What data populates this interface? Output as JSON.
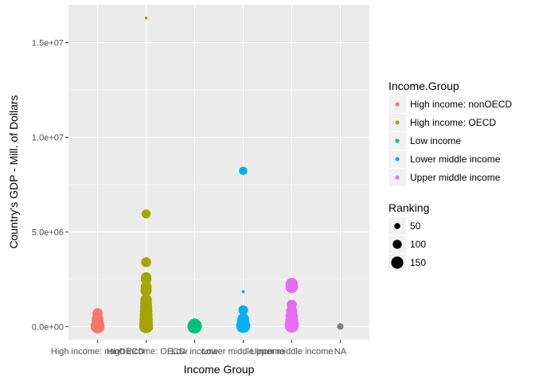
{
  "chart_data": {
    "type": "scatter",
    "title": "",
    "xlabel": "Income Group",
    "ylabel": "Country's GDP - Mill. of Dollars",
    "categories": [
      "High income: nonOECD",
      "High income: OECD",
      "Low income",
      "Lower middle income",
      "Upper middle income",
      "NA"
    ],
    "ylim": [
      -700000,
      17000000
    ],
    "yticks": [
      0,
      5000000,
      10000000,
      15000000
    ],
    "ytick_labels": [
      "0.0e+00",
      "5.0e+06",
      "1.0e+07",
      "1.5e+07"
    ],
    "grid": true,
    "legend_position": "right",
    "colors": {
      "High income: nonOECD": "#F8766D",
      "High income: OECD": "#A3A500",
      "Low income": "#00BF7D",
      "Lower middle income": "#00B0F6",
      "Upper middle income": "#E76BF3",
      "NA": "#7F7F7F"
    },
    "color_legend": {
      "title": "Income.Group",
      "entries": [
        "High income: nonOECD",
        "High income: OECD",
        "Low income",
        "Lower middle income",
        "Upper middle income"
      ]
    },
    "size_legend": {
      "title": "Ranking",
      "entries": [
        {
          "label": "50",
          "value": 50
        },
        {
          "label": "100",
          "value": 100
        },
        {
          "label": "150",
          "value": 150
        }
      ]
    },
    "series": [
      {
        "name": "High income: nonOECD",
        "points": [
          {
            "y": 700000,
            "rank": 120
          },
          {
            "y": 400000,
            "rank": 140
          },
          {
            "y": 250000,
            "rank": 150
          },
          {
            "y": 150000,
            "rank": 155
          },
          {
            "y": 60000,
            "rank": 170
          },
          {
            "y": 10000,
            "rank": 180
          }
        ]
      },
      {
        "name": "High income: OECD",
        "points": [
          {
            "y": 16300000,
            "rank": 1
          },
          {
            "y": 5950000,
            "rank": 100
          },
          {
            "y": 3400000,
            "rank": 115
          },
          {
            "y": 2600000,
            "rank": 120
          },
          {
            "y": 2500000,
            "rank": 125
          },
          {
            "y": 2100000,
            "rank": 130
          },
          {
            "y": 1900000,
            "rank": 135
          },
          {
            "y": 1400000,
            "rank": 140
          },
          {
            "y": 1200000,
            "rank": 145
          },
          {
            "y": 1000000,
            "rank": 150
          },
          {
            "y": 800000,
            "rank": 155
          },
          {
            "y": 600000,
            "rank": 160
          },
          {
            "y": 400000,
            "rank": 165
          },
          {
            "y": 250000,
            "rank": 170
          },
          {
            "y": 100000,
            "rank": 175
          },
          {
            "y": 20000,
            "rank": 180
          }
        ]
      },
      {
        "name": "Low income",
        "points": [
          {
            "y": 60000,
            "rank": 175
          },
          {
            "y": 30000,
            "rank": 180
          },
          {
            "y": 10000,
            "rank": 185
          }
        ]
      },
      {
        "name": "Lower middle income",
        "points": [
          {
            "y": 8230000,
            "rank": 90
          },
          {
            "y": 1840000,
            "rank": 5
          },
          {
            "y": 870000,
            "rank": 110
          },
          {
            "y": 400000,
            "rank": 140
          },
          {
            "y": 250000,
            "rank": 150
          },
          {
            "y": 100000,
            "rank": 165
          },
          {
            "y": 30000,
            "rank": 180
          }
        ]
      },
      {
        "name": "Upper middle income",
        "points": [
          {
            "y": 2250000,
            "rank": 150
          },
          {
            "y": 2100000,
            "rank": 155
          },
          {
            "y": 1150000,
            "rank": 120
          },
          {
            "y": 800000,
            "rank": 135
          },
          {
            "y": 550000,
            "rank": 150
          },
          {
            "y": 300000,
            "rank": 160
          },
          {
            "y": 150000,
            "rank": 170
          },
          {
            "y": 50000,
            "rank": 180
          }
        ]
      },
      {
        "name": "NA",
        "points": [
          {
            "y": 5000,
            "rank": 60
          }
        ]
      }
    ]
  }
}
